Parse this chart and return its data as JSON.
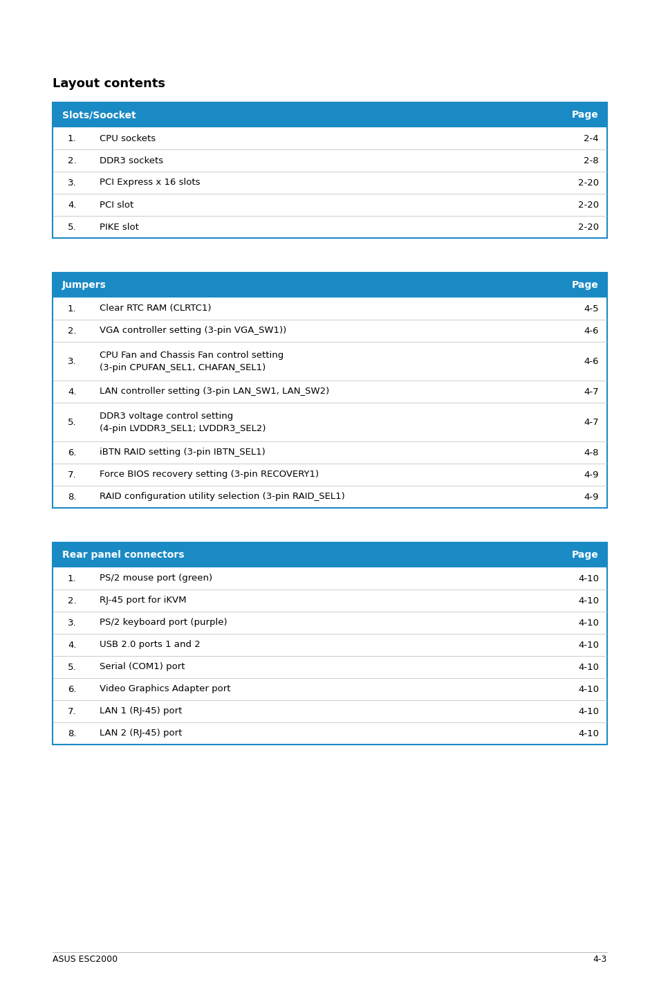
{
  "title": "Layout contents",
  "header_color": "#1a8ac4",
  "header_text_color": "#ffffff",
  "border_color": "#1a8ac4",
  "row_divider_color": "#cccccc",
  "bg_color": "#ffffff",
  "text_color": "#000000",
  "footer_left": "ASUS ESC2000",
  "footer_right": "4-3",
  "tables": [
    {
      "header": [
        "Slots/Soocket",
        "Page"
      ],
      "rows": [
        [
          "1.",
          "CPU sockets",
          "2-4"
        ],
        [
          "2.",
          "DDR3 sockets",
          "2-8"
        ],
        [
          "3.",
          "PCI Express x 16 slots",
          "2-20"
        ],
        [
          "4.",
          "PCI slot",
          "2-20"
        ],
        [
          "5.",
          "PIKE slot",
          "2-20"
        ]
      ]
    },
    {
      "header": [
        "Jumpers",
        "Page"
      ],
      "rows": [
        [
          "1.",
          "Clear RTC RAM (CLRTC1)",
          "4-5"
        ],
        [
          "2.",
          "VGA controller setting (3-pin VGA_SW1))",
          "4-6"
        ],
        [
          "3.",
          "CPU Fan and Chassis Fan control setting\n(3-pin CPUFAN_SEL1, CHAFAN_SEL1)",
          "4-6"
        ],
        [
          "4.",
          "LAN controller setting (3-pin LAN_SW1, LAN_SW2)",
          "4-7"
        ],
        [
          "5.",
          "DDR3 voltage control setting\n(4-pin LVDDR3_SEL1; LVDDR3_SEL2)",
          "4-7"
        ],
        [
          "6.",
          "iBTN RAID setting (3-pin IBTN_SEL1)",
          "4-8"
        ],
        [
          "7.",
          "Force BIOS recovery setting (3-pin RECOVERY1)",
          "4-9"
        ],
        [
          "8.",
          "RAID configuration utility selection (3-pin RAID_SEL1)",
          "4-9"
        ]
      ]
    },
    {
      "header": [
        "Rear panel connectors",
        "Page"
      ],
      "rows": [
        [
          "1.",
          "PS/2 mouse port (green)",
          "4-10"
        ],
        [
          "2.",
          "RJ-45 port for iKVM",
          "4-10"
        ],
        [
          "3.",
          "PS/2 keyboard port (purple)",
          "4-10"
        ],
        [
          "4.",
          "USB 2.0 ports 1 and 2",
          "4-10"
        ],
        [
          "5.",
          "Serial (COM1) port",
          "4-10"
        ],
        [
          "6.",
          "Video Graphics Adapter port",
          "4-10"
        ],
        [
          "7.",
          "LAN 1 (RJ-45) port",
          "4-10"
        ],
        [
          "8.",
          "LAN 2 (RJ-45) port",
          "4-10"
        ]
      ]
    }
  ]
}
